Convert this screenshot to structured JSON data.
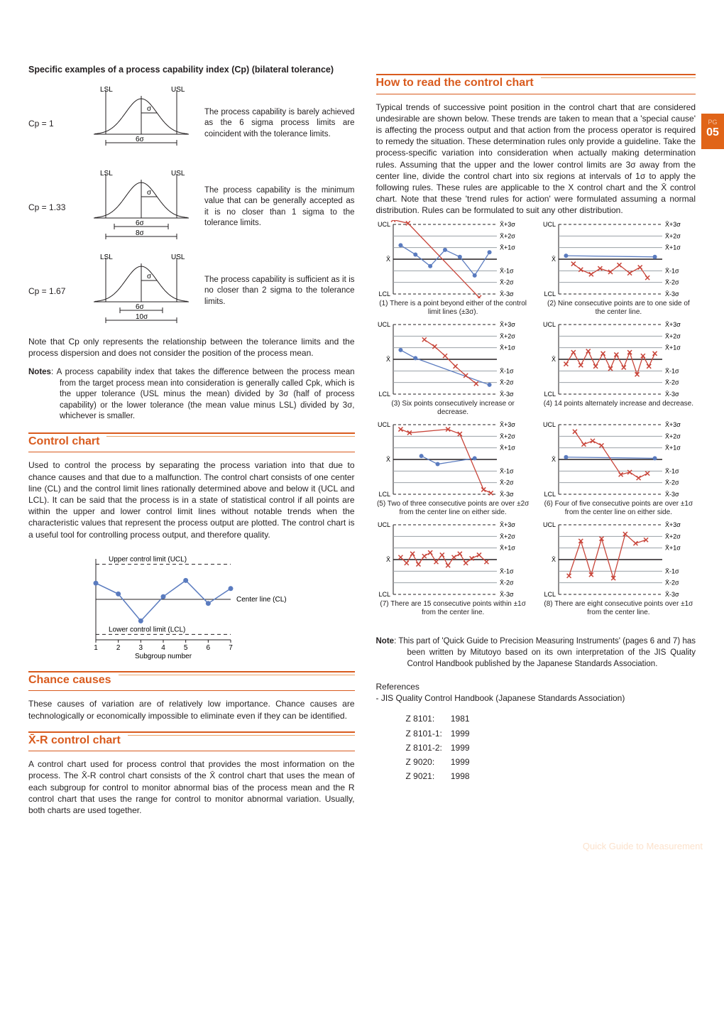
{
  "sideTab": {
    "pg": "PG",
    "num": "05"
  },
  "footer": "Quick Guide to Measurement",
  "left": {
    "specificExamplesHeading": "Specific examples of a process capability index (Cp) (bilateral tolerance)",
    "cpRows": [
      {
        "label": "Cp = 1",
        "sixSigma": "6σ",
        "extra": "",
        "desc": "The process capability is barely achieved as the 6 sigma process limits are coincident with the tolerance limits."
      },
      {
        "label": "Cp = 1.33",
        "sixSigma": "6σ",
        "extra": "8σ",
        "desc": "The process capability is the minimum value that can be generally accepted as it is no closer than 1 sigma to the tolerance limits."
      },
      {
        "label": "Cp = 1.67",
        "sixSigma": "6σ",
        "extra": "10σ",
        "desc": "The process capability is sufficient as it is no closer than 2 sigma to the tolerance limits."
      }
    ],
    "lslLabel": "LSL",
    "uslLabel": "USL",
    "sigmaLabel": "σ",
    "cpNote": "Note that Cp only represents the relationship between the tolerance limits and the process dispersion and does not consider the position of the process mean.",
    "notesLabel": "Notes",
    "notesText": ": A process capability index that takes the difference between the process mean from the target process mean into consideration is generally called Cpk, which is the upper tolerance (USL minus the mean) divided by 3σ (half of process capability) or the lower tolerance (the mean value minus LSL) divided by 3σ, whichever is smaller.",
    "controlChartTitle": "Control chart",
    "controlChartText": "Used to control the process by separating the process variation into that due to chance causes and that due to a malfunction. The control chart consists of one center line (CL) and the control limit lines rationally determined above and below it (UCL and LCL). It can be said that the process is in a state of statistical control if all points are within the upper and lower control limit lines without notable trends when the characteristic values that represent the process output are plotted. The control chart is a useful tool for controlling process output, and therefore quality.",
    "ccFig": {
      "ucl": "Upper control limit (UCL)",
      "cl": "Center line (CL)",
      "lcl": "Lower control limit (LCL)",
      "xaxis": "Subgroup number",
      "ticks": [
        "1",
        "2",
        "3",
        "4",
        "5",
        "6",
        "7"
      ]
    },
    "chanceTitle": "Chance causes",
    "chanceText": "These causes of variation are of relatively low importance. Chance causes are technologically or economically impossible to eliminate even if they can be identified.",
    "xrTitle": "X̄-R control chart",
    "xrText": "A control chart used for process control that provides the most information on the process. The X̄-R control chart consists of the X̄ control chart that uses the mean of each subgroup for control to monitor abnormal bias of the process mean and the R control chart that uses the range for control to monitor abnormal variation. Usually, both charts are used together."
  },
  "right": {
    "howToTitle": "How to read the control chart",
    "howToText": "Typical trends of successive point position in the control chart that are considered undesirable are shown below. These trends are taken to mean that a 'special cause' is affecting the process output and that action from the process operator is required to remedy the situation. These determination rules only provide a guideline. Take the process-specific variation into consideration when actually making determination rules. Assuming that the upper and the lower control limits are 3σ away from the center line, divide the control chart into six regions at intervals of 1σ to apply the following rules. These rules are applicable to the X control chart and the X̄ control chart. Note that these 'trend rules for action' were formulated assuming a normal distribution. Rules can be formulated to suit any other distribution.",
    "sigmaLabels": {
      "ucl": "UCL",
      "lcl": "LCL",
      "xbar": "X̄",
      "p3": "X̄+3σ",
      "p2": "X̄+2σ",
      "p1": "X̄+1σ",
      "m1": "X̄-1σ",
      "m2": "X̄-2σ",
      "m3": "X̄-3σ"
    },
    "charts": [
      {
        "caption": "(1) There is a point beyond either of the control limit lines (±3σ).",
        "blue": [
          [
            1,
            1.2
          ],
          [
            2,
            0.4
          ],
          [
            3,
            -0.6
          ],
          [
            4,
            0.8
          ],
          [
            5,
            0.2
          ],
          [
            6,
            -1.4
          ],
          [
            7,
            0.6
          ]
        ],
        "red": [
          [
            0.5,
            3.4
          ],
          [
            1.5,
            3.1
          ],
          [
            6.3,
            -3.3
          ]
        ]
      },
      {
        "caption": "(2) Nine consecutive points are to one side of the center line.",
        "blue": [
          [
            1,
            0.3
          ],
          [
            7,
            0.2
          ]
        ],
        "red": [
          [
            1.5,
            -0.4
          ],
          [
            2,
            -0.9
          ],
          [
            2.7,
            -1.3
          ],
          [
            3.3,
            -0.8
          ],
          [
            4,
            -1.1
          ],
          [
            4.6,
            -0.5
          ],
          [
            5.3,
            -1.2
          ],
          [
            6,
            -0.7
          ],
          [
            6.5,
            -1.6
          ]
        ]
      },
      {
        "caption": "(3) Six points consecutively increase or decrease.",
        "blue": [
          [
            1,
            0.8
          ],
          [
            2,
            0.1
          ],
          [
            7,
            -2.2
          ]
        ],
        "red": [
          [
            2.6,
            1.7
          ],
          [
            3.3,
            1.1
          ],
          [
            4,
            0.3
          ],
          [
            4.7,
            -0.6
          ],
          [
            5.4,
            -1.4
          ],
          [
            6.1,
            -2.1
          ]
        ]
      },
      {
        "caption": "(4) 14 points alternately increase and decrease.",
        "blue": [],
        "red": [
          [
            1,
            -0.4
          ],
          [
            1.5,
            0.6
          ],
          [
            2,
            -0.5
          ],
          [
            2.5,
            0.7
          ],
          [
            3,
            -0.6
          ],
          [
            3.5,
            0.5
          ],
          [
            4,
            -0.8
          ],
          [
            4.4,
            0.4
          ],
          [
            4.9,
            -0.7
          ],
          [
            5.3,
            0.6
          ],
          [
            5.8,
            -1.3
          ],
          [
            6.2,
            0.3
          ],
          [
            6.6,
            -0.6
          ],
          [
            7,
            0.5
          ]
        ]
      },
      {
        "caption": "(5) Two of three consecutive points are over ±2σ from the center line on either side.",
        "blue": [
          [
            2.4,
            0.3
          ],
          [
            3.5,
            -0.4
          ],
          [
            6,
            0.1
          ]
        ],
        "red": [
          [
            1,
            2.6
          ],
          [
            1.6,
            2.3
          ],
          [
            4.2,
            2.6
          ],
          [
            5,
            2.2
          ],
          [
            6.6,
            -2.6
          ],
          [
            7.1,
            -2.9
          ]
        ]
      },
      {
        "caption": "(6) Four of five consecutive points are over ±1σ from the center line on either side.",
        "blue": [
          [
            1,
            0.2
          ],
          [
            7,
            0.1
          ]
        ],
        "red": [
          [
            1.6,
            2.4
          ],
          [
            2.2,
            1.3
          ],
          [
            2.8,
            1.6
          ],
          [
            3.4,
            1.2
          ],
          [
            4.7,
            -1.3
          ],
          [
            5.3,
            -1.1
          ],
          [
            5.9,
            -1.6
          ],
          [
            6.5,
            -1.2
          ]
        ]
      },
      {
        "caption": "(7) There are 15 consecutive points within ±1σ from the center line.",
        "blue": [],
        "red": [
          [
            1,
            0.2
          ],
          [
            1.4,
            -0.3
          ],
          [
            1.8,
            0.5
          ],
          [
            2.2,
            -0.4
          ],
          [
            2.6,
            0.3
          ],
          [
            3,
            0.6
          ],
          [
            3.4,
            -0.2
          ],
          [
            3.8,
            0.4
          ],
          [
            4.2,
            -0.5
          ],
          [
            4.6,
            0.2
          ],
          [
            5,
            0.5
          ],
          [
            5.4,
            -0.3
          ],
          [
            5.8,
            0.1
          ],
          [
            6.3,
            0.4
          ],
          [
            6.8,
            -0.2
          ]
        ]
      },
      {
        "caption": "(8) There are eight consecutive points over ±1σ from the center line.",
        "blue": [],
        "red": [
          [
            1.2,
            -1.4
          ],
          [
            2,
            1.6
          ],
          [
            2.7,
            -1.3
          ],
          [
            3.4,
            1.8
          ],
          [
            4.2,
            -1.6
          ],
          [
            5,
            2.2
          ],
          [
            5.7,
            1.4
          ],
          [
            6.4,
            1.7
          ]
        ]
      }
    ],
    "noteLabel": "Note",
    "noteText": ": This part of 'Quick Guide to Precision Measuring Instruments' (pages 6 and 7) has been written by Mitutoyo based on its own interpretation of the JIS Quality Control Handbook published by the Japanese Standards Association.",
    "refLabel": "References",
    "refLine": "- JIS Quality Control Handbook (Japanese Standards Association)",
    "refs": [
      [
        "Z 8101:",
        "1981"
      ],
      [
        "Z 8101-1:",
        "1999"
      ],
      [
        "Z 8101-2:",
        "1999"
      ],
      [
        "Z 9020:",
        "1999"
      ],
      [
        "Z 9021:",
        "1998"
      ]
    ]
  },
  "colors": {
    "orange": "#d95b1e",
    "blue": "#5a7bbf",
    "red": "#c8453a",
    "gray": "#9aa0a6",
    "black": "#231f20"
  }
}
